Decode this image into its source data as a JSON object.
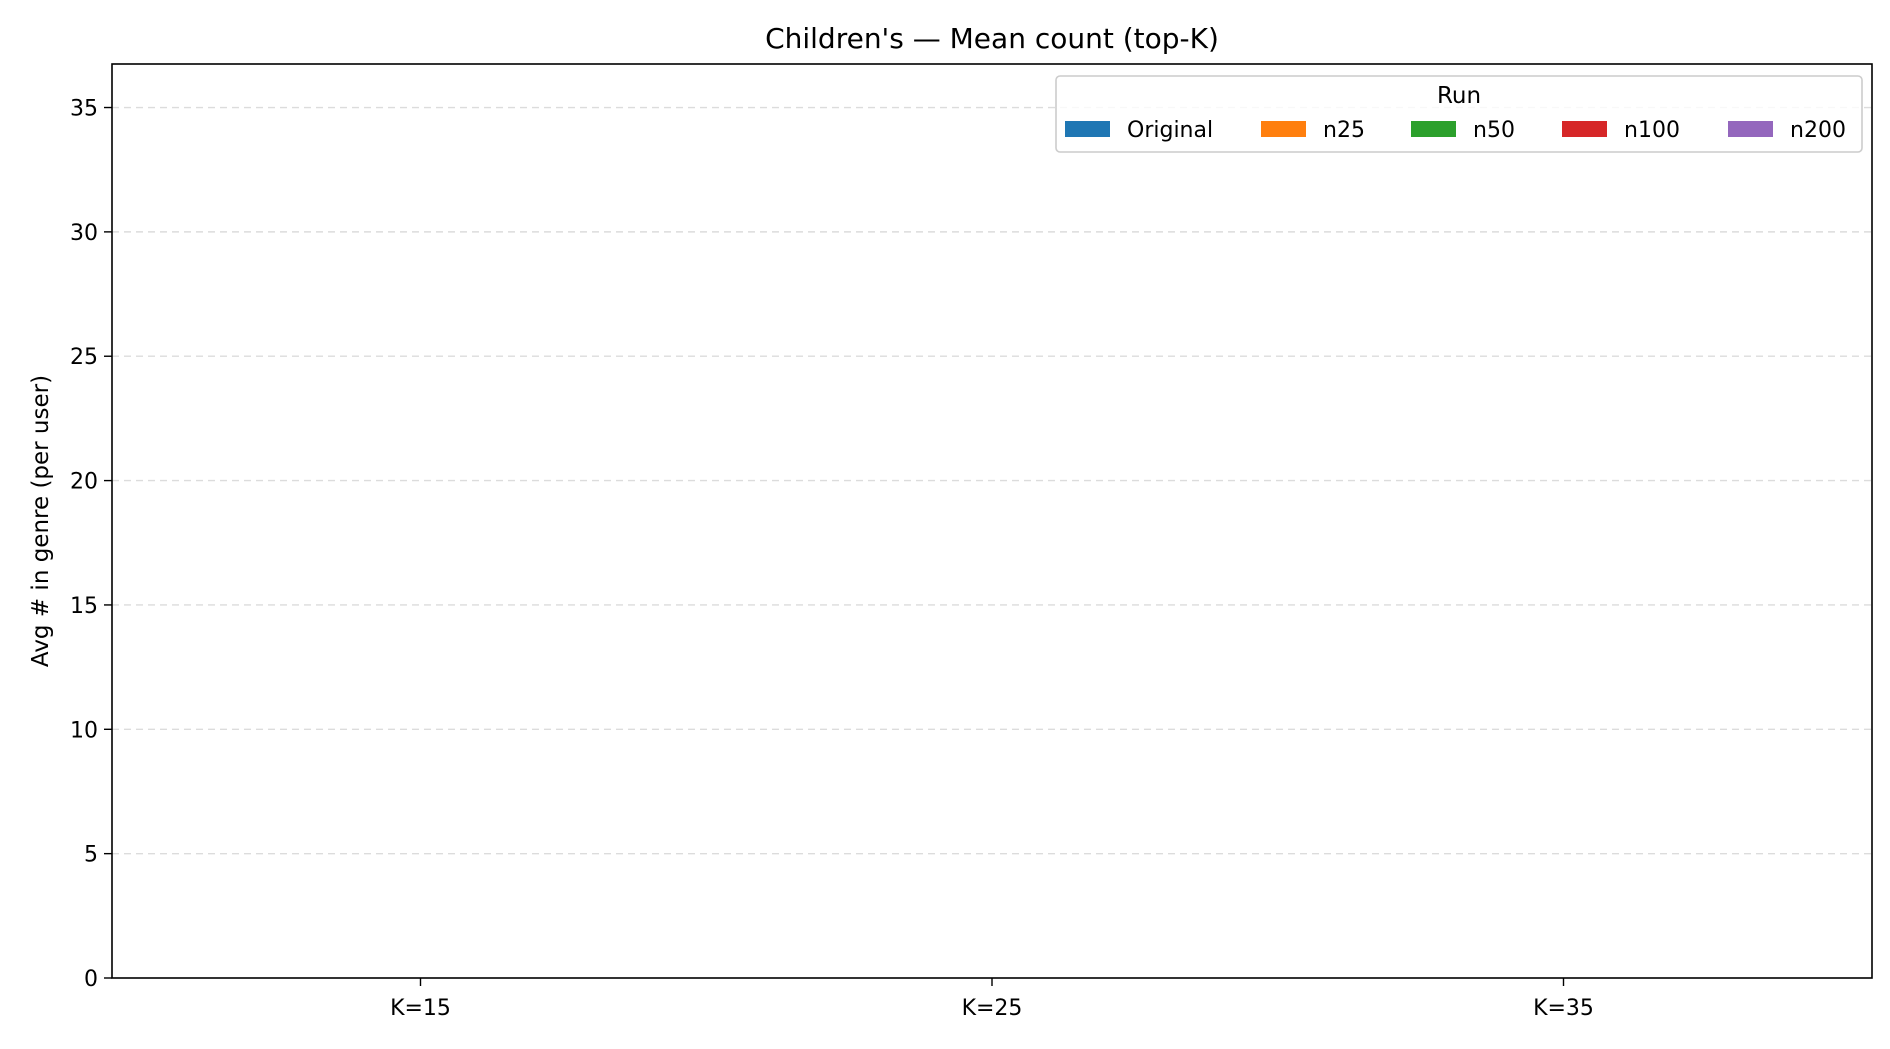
{
  "chart_data": {
    "type": "bar",
    "title": "Children's — Mean count (top-K)",
    "xlabel": "",
    "ylabel": "Avg # in genre (per user)",
    "categories": [
      "K=15",
      "K=25",
      "K=35"
    ],
    "series": [
      {
        "name": "Original",
        "color": "#1f77b4",
        "values": [
          0,
          0,
          0
        ]
      },
      {
        "name": "n25",
        "color": "#ff7f0e",
        "values": [
          0,
          0,
          0
        ]
      },
      {
        "name": "n50",
        "color": "#2ca02c",
        "values": [
          0,
          0,
          0
        ]
      },
      {
        "name": "n100",
        "color": "#d62728",
        "values": [
          0,
          0,
          0
        ]
      },
      {
        "name": "n200",
        "color": "#9467bd",
        "values": [
          0,
          0,
          0
        ]
      }
    ],
    "ylim": [
      0,
      36.75
    ],
    "yticks": [
      0,
      5,
      10,
      15,
      20,
      25,
      30,
      35
    ],
    "grid": "y-dashed",
    "legend": {
      "title": "Run",
      "placement": "top-right",
      "columns": 5
    }
  }
}
